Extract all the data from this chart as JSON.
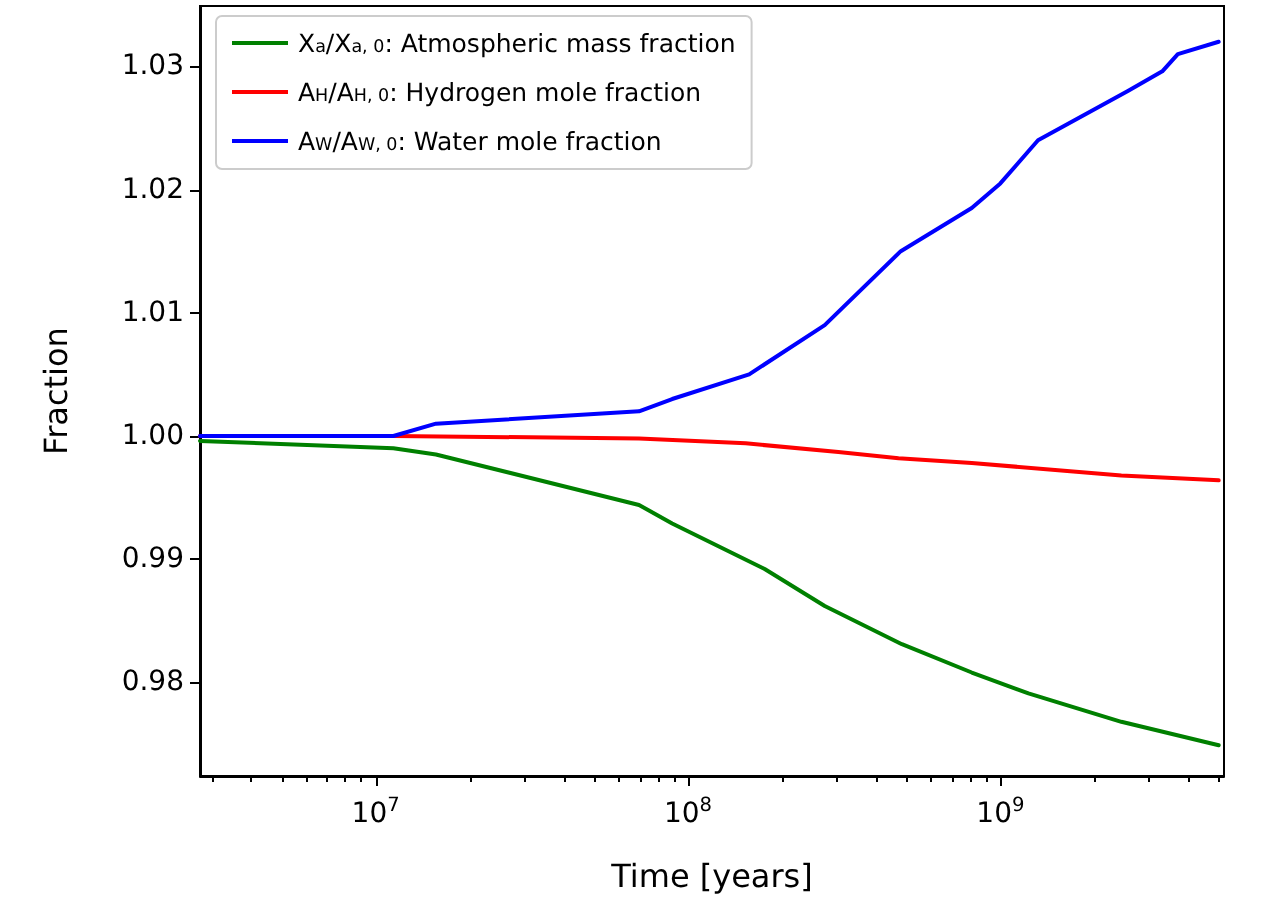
{
  "chart_data": {
    "type": "line",
    "xlabel": "Time [years]",
    "ylabel": "Fraction",
    "log": "x",
    "grid": false,
    "legend": "top left",
    "marker": "none",
    "line_style": "solid",
    "xlim": [
      2740000,
      5200000000
    ],
    "ylim": [
      0.9724,
      1.0349
    ],
    "xticks": [
      {
        "value": 3000000,
        "label": null
      },
      {
        "value": 4000000,
        "label": null
      },
      {
        "value": 5000000,
        "label": null
      },
      {
        "value": 6000000,
        "label": null
      },
      {
        "value": 7000000,
        "label": null
      },
      {
        "value": 8000000,
        "label": null
      },
      {
        "value": 9000000,
        "label": null
      },
      {
        "value": 10000000,
        "label": "10$^{7}$"
      },
      {
        "value": 20000000,
        "label": null
      },
      {
        "value": 30000000,
        "label": null
      },
      {
        "value": 40000000,
        "label": null
      },
      {
        "value": 50000000,
        "label": null
      },
      {
        "value": 60000000,
        "label": null
      },
      {
        "value": 70000000,
        "label": null
      },
      {
        "value": 80000000,
        "label": null
      },
      {
        "value": 90000000,
        "label": null
      },
      {
        "value": 100000000,
        "label": "10$^{8}$"
      },
      {
        "value": 200000000,
        "label": null
      },
      {
        "value": 300000000,
        "label": null
      },
      {
        "value": 400000000,
        "label": null
      },
      {
        "value": 500000000,
        "label": null
      },
      {
        "value": 600000000,
        "label": null
      },
      {
        "value": 700000000,
        "label": null
      },
      {
        "value": 800000000,
        "label": null
      },
      {
        "value": 900000000,
        "label": null
      },
      {
        "value": 1000000000,
        "label": "10$^{9}$"
      },
      {
        "value": 2000000000,
        "label": null
      },
      {
        "value": 3000000000,
        "label": null
      },
      {
        "value": 4000000000,
        "label": null
      },
      {
        "value": 5000000000,
        "label": null
      }
    ],
    "yticks": [
      0.98,
      0.99,
      {
        "value": 1,
        "label": "1.00"
      },
      1.01,
      1.02,
      1.03
    ],
    "series": [
      {
        "name": "X$_{a}$/X$_{a, 0}$: Atmospheric mass fraction",
        "color": "#008000",
        "x": [
          2740000,
          11400000,
          15600000,
          69700000,
          89000000,
          176000000,
          274000000,
          484000000,
          810000000,
          1230000000,
          2440000000,
          5000000000
        ],
        "values": [
          0.9996,
          0.999,
          0.9985,
          0.9944,
          0.9929,
          0.9892,
          0.9862,
          0.9831,
          0.9808,
          0.9791,
          0.9768,
          0.9749
        ]
      },
      {
        "name": "A$_{H}$/A$_{H, 0}$: Hydrogen mole fraction",
        "color": "#ff0000",
        "x": [
          2740000,
          11400000,
          69700000,
          153000000,
          303000000,
          472000000,
          810000000,
          2440000000,
          5000000000
        ],
        "values": [
          1.0,
          1.0,
          0.9998,
          0.9994,
          0.9987,
          0.9982,
          0.9978,
          0.9968,
          0.9964
        ]
      },
      {
        "name": "A$_{W}$/A$_{W, 0}$: Water mole fraction",
        "color": "#0000ff",
        "x": [
          2740000,
          11400000,
          15600000,
          69700000,
          89000000,
          157000000,
          274000000,
          480000000,
          810000000,
          1000000000,
          1320000000,
          2560000000,
          3300000000,
          3700000000,
          5000000000
        ],
        "values": [
          1.0,
          1.0,
          1.001,
          1.002,
          1.003,
          1.005,
          1.009,
          1.015,
          1.0185,
          1.0205,
          1.024,
          1.028,
          1.0296,
          1.031,
          1.032
        ]
      }
    ]
  }
}
